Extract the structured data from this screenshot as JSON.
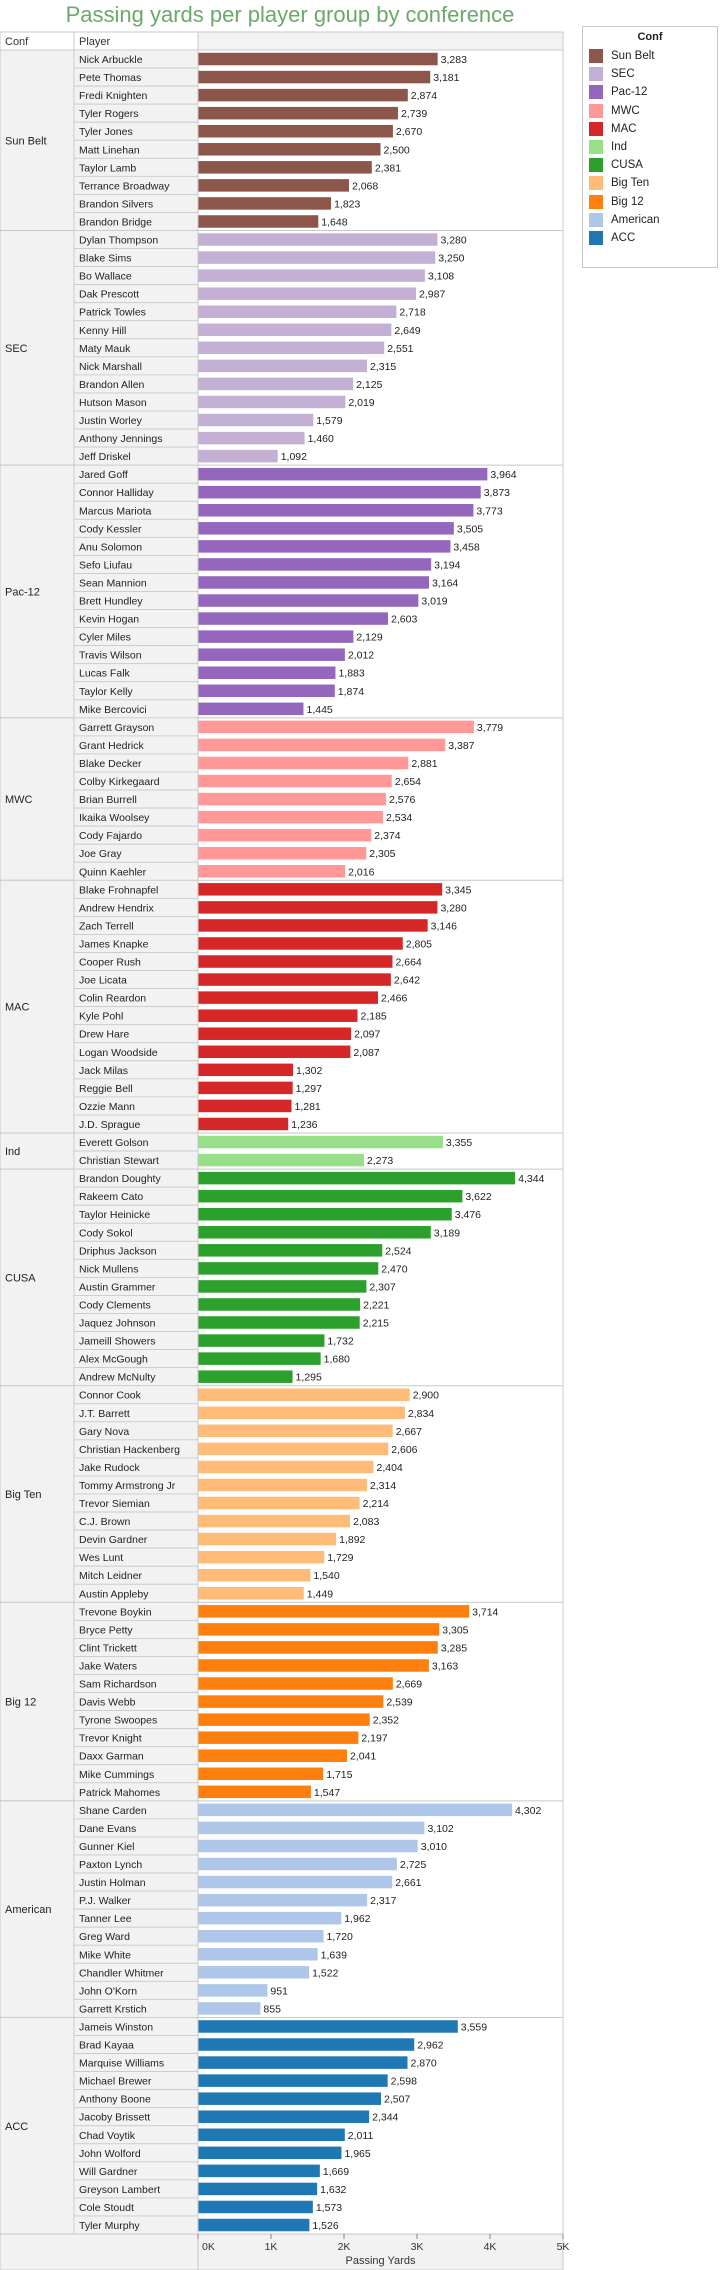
{
  "chart_data": {
    "type": "bar",
    "orientation": "horizontal",
    "title": "Passing yards per player group by conference",
    "xlabel": "Passing Yards",
    "row_headers": [
      "Conf",
      "Player"
    ],
    "xlim": [
      0,
      5000
    ],
    "x_ticks": [
      0,
      1000,
      2000,
      3000,
      4000,
      5000
    ],
    "x_tick_labels": [
      "0K",
      "1K",
      "2K",
      "3K",
      "4K",
      "5K"
    ],
    "grid": false,
    "legend": {
      "title": "Conf",
      "position": "right"
    },
    "groups": [
      {
        "name": "Sun Belt",
        "color": "#8c564b",
        "players": [
          {
            "name": "Nick Arbuckle",
            "value": 3283,
            "label": "3,283"
          },
          {
            "name": "Pete Thomas",
            "value": 3181,
            "label": "3,181"
          },
          {
            "name": "Fredi Knighten",
            "value": 2874,
            "label": "2,874"
          },
          {
            "name": "Tyler Rogers",
            "value": 2739,
            "label": "2,739"
          },
          {
            "name": "Tyler Jones",
            "value": 2670,
            "label": "2,670"
          },
          {
            "name": "Matt Linehan",
            "value": 2500,
            "label": "2,500"
          },
          {
            "name": "Taylor Lamb",
            "value": 2381,
            "label": "2,381"
          },
          {
            "name": "Terrance Broadway",
            "value": 2068,
            "label": "2,068"
          },
          {
            "name": "Brandon Silvers",
            "value": 1823,
            "label": "1,823"
          },
          {
            "name": "Brandon Bridge",
            "value": 1648,
            "label": "1,648"
          }
        ]
      },
      {
        "name": "SEC",
        "color": "#c5b0d5",
        "players": [
          {
            "name": "Dylan Thompson",
            "value": 3280,
            "label": "3,280"
          },
          {
            "name": "Blake Sims",
            "value": 3250,
            "label": "3,250"
          },
          {
            "name": "Bo Wallace",
            "value": 3108,
            "label": "3,108"
          },
          {
            "name": "Dak Prescott",
            "value": 2987,
            "label": "2,987"
          },
          {
            "name": "Patrick Towles",
            "value": 2718,
            "label": "2,718"
          },
          {
            "name": "Kenny Hill",
            "value": 2649,
            "label": "2,649"
          },
          {
            "name": "Maty Mauk",
            "value": 2551,
            "label": "2,551"
          },
          {
            "name": "Nick Marshall",
            "value": 2315,
            "label": "2,315"
          },
          {
            "name": "Brandon Allen",
            "value": 2125,
            "label": "2,125"
          },
          {
            "name": "Hutson Mason",
            "value": 2019,
            "label": "2,019"
          },
          {
            "name": "Justin Worley",
            "value": 1579,
            "label": "1,579"
          },
          {
            "name": "Anthony Jennings",
            "value": 1460,
            "label": "1,460"
          },
          {
            "name": "Jeff Driskel",
            "value": 1092,
            "label": "1,092"
          }
        ]
      },
      {
        "name": "Pac-12",
        "color": "#9467bd",
        "players": [
          {
            "name": "Jared Goff",
            "value": 3964,
            "label": "3,964"
          },
          {
            "name": "Connor Halliday",
            "value": 3873,
            "label": "3,873"
          },
          {
            "name": "Marcus Mariota",
            "value": 3773,
            "label": "3,773"
          },
          {
            "name": "Cody Kessler",
            "value": 3505,
            "label": "3,505"
          },
          {
            "name": "Anu Solomon",
            "value": 3458,
            "label": "3,458"
          },
          {
            "name": "Sefo Liufau",
            "value": 3194,
            "label": "3,194"
          },
          {
            "name": "Sean Mannion",
            "value": 3164,
            "label": "3,164"
          },
          {
            "name": "Brett Hundley",
            "value": 3019,
            "label": "3,019"
          },
          {
            "name": "Kevin Hogan",
            "value": 2603,
            "label": "2,603"
          },
          {
            "name": "Cyler Miles",
            "value": 2129,
            "label": "2,129"
          },
          {
            "name": "Travis Wilson",
            "value": 2012,
            "label": "2,012"
          },
          {
            "name": "Lucas Falk",
            "value": 1883,
            "label": "1,883"
          },
          {
            "name": "Taylor Kelly",
            "value": 1874,
            "label": "1,874"
          },
          {
            "name": "Mike Bercovici",
            "value": 1445,
            "label": "1,445"
          }
        ]
      },
      {
        "name": "MWC",
        "color": "#ff9896",
        "players": [
          {
            "name": "Garrett Grayson",
            "value": 3779,
            "label": "3,779"
          },
          {
            "name": "Grant Hedrick",
            "value": 3387,
            "label": "3,387"
          },
          {
            "name": "Blake Decker",
            "value": 2881,
            "label": "2,881"
          },
          {
            "name": "Colby Kirkegaard",
            "value": 2654,
            "label": "2,654"
          },
          {
            "name": "Brian Burrell",
            "value": 2576,
            "label": "2,576"
          },
          {
            "name": "Ikaika Woolsey",
            "value": 2534,
            "label": "2,534"
          },
          {
            "name": "Cody Fajardo",
            "value": 2374,
            "label": "2,374"
          },
          {
            "name": "Joe Gray",
            "value": 2305,
            "label": "2,305"
          },
          {
            "name": "Quinn Kaehler",
            "value": 2016,
            "label": "2,016"
          }
        ]
      },
      {
        "name": "MAC",
        "color": "#d62728",
        "players": [
          {
            "name": "Blake Frohnapfel",
            "value": 3345,
            "label": "3,345"
          },
          {
            "name": "Andrew Hendrix",
            "value": 3280,
            "label": "3,280"
          },
          {
            "name": "Zach Terrell",
            "value": 3146,
            "label": "3,146"
          },
          {
            "name": "James Knapke",
            "value": 2805,
            "label": "2,805"
          },
          {
            "name": "Cooper Rush",
            "value": 2664,
            "label": "2,664"
          },
          {
            "name": "Joe Licata",
            "value": 2642,
            "label": "2,642"
          },
          {
            "name": "Colin Reardon",
            "value": 2466,
            "label": "2,466"
          },
          {
            "name": "Kyle Pohl",
            "value": 2185,
            "label": "2,185"
          },
          {
            "name": "Drew Hare",
            "value": 2097,
            "label": "2,097"
          },
          {
            "name": "Logan Woodside",
            "value": 2087,
            "label": "2,087"
          },
          {
            "name": "Jack Milas",
            "value": 1302,
            "label": "1,302"
          },
          {
            "name": "Reggie Bell",
            "value": 1297,
            "label": "1,297"
          },
          {
            "name": "Ozzie Mann",
            "value": 1281,
            "label": "1,281"
          },
          {
            "name": "J.D. Sprague",
            "value": 1236,
            "label": "1,236"
          }
        ]
      },
      {
        "name": "Ind",
        "color": "#98df8a",
        "players": [
          {
            "name": "Everett Golson",
            "value": 3355,
            "label": "3,355"
          },
          {
            "name": "Christian Stewart",
            "value": 2273,
            "label": "2,273"
          }
        ]
      },
      {
        "name": "CUSA",
        "color": "#2ca02c",
        "players": [
          {
            "name": "Brandon Doughty",
            "value": 4344,
            "label": "4,344"
          },
          {
            "name": "Rakeem Cato",
            "value": 3622,
            "label": "3,622"
          },
          {
            "name": "Taylor Heinicke",
            "value": 3476,
            "label": "3,476"
          },
          {
            "name": "Cody Sokol",
            "value": 3189,
            "label": "3,189"
          },
          {
            "name": "Driphus Jackson",
            "value": 2524,
            "label": "2,524"
          },
          {
            "name": "Nick Mullens",
            "value": 2470,
            "label": "2,470"
          },
          {
            "name": "Austin Grammer",
            "value": 2307,
            "label": "2,307"
          },
          {
            "name": "Cody Clements",
            "value": 2221,
            "label": "2,221"
          },
          {
            "name": "Jaquez Johnson",
            "value": 2215,
            "label": "2,215"
          },
          {
            "name": "Jameill Showers",
            "value": 1732,
            "label": "1,732"
          },
          {
            "name": "Alex McGough",
            "value": 1680,
            "label": "1,680"
          },
          {
            "name": "Andrew McNulty",
            "value": 1295,
            "label": "1,295"
          }
        ]
      },
      {
        "name": "Big Ten",
        "color": "#ffbb78",
        "players": [
          {
            "name": "Connor Cook",
            "value": 2900,
            "label": "2,900"
          },
          {
            "name": "J.T. Barrett",
            "value": 2834,
            "label": "2,834"
          },
          {
            "name": "Gary Nova",
            "value": 2667,
            "label": "2,667"
          },
          {
            "name": "Christian Hackenberg",
            "value": 2606,
            "label": "2,606"
          },
          {
            "name": "Jake Rudock",
            "value": 2404,
            "label": "2,404"
          },
          {
            "name": "Tommy Armstrong Jr",
            "value": 2314,
            "label": "2,314"
          },
          {
            "name": "Trevor Siemian",
            "value": 2214,
            "label": "2,214"
          },
          {
            "name": "C.J. Brown",
            "value": 2083,
            "label": "2,083"
          },
          {
            "name": "Devin Gardner",
            "value": 1892,
            "label": "1,892"
          },
          {
            "name": "Wes Lunt",
            "value": 1729,
            "label": "1,729"
          },
          {
            "name": "Mitch Leidner",
            "value": 1540,
            "label": "1,540"
          },
          {
            "name": "Austin Appleby",
            "value": 1449,
            "label": "1,449"
          }
        ]
      },
      {
        "name": "Big 12",
        "color": "#ff7f0e",
        "players": [
          {
            "name": "Trevone Boykin",
            "value": 3714,
            "label": "3,714"
          },
          {
            "name": "Bryce Petty",
            "value": 3305,
            "label": "3,305"
          },
          {
            "name": "Clint Trickett",
            "value": 3285,
            "label": "3,285"
          },
          {
            "name": "Jake Waters",
            "value": 3163,
            "label": "3,163"
          },
          {
            "name": "Sam Richardson",
            "value": 2669,
            "label": "2,669"
          },
          {
            "name": "Davis Webb",
            "value": 2539,
            "label": "2,539"
          },
          {
            "name": "Tyrone Swoopes",
            "value": 2352,
            "label": "2,352"
          },
          {
            "name": "Trevor Knight",
            "value": 2197,
            "label": "2,197"
          },
          {
            "name": "Daxx Garman",
            "value": 2041,
            "label": "2,041"
          },
          {
            "name": "Mike Cummings",
            "value": 1715,
            "label": "1,715"
          },
          {
            "name": "Patrick Mahomes",
            "value": 1547,
            "label": "1,547"
          }
        ]
      },
      {
        "name": "American",
        "color": "#aec7e8",
        "players": [
          {
            "name": "Shane Carden",
            "value": 4302,
            "label": "4,302"
          },
          {
            "name": "Dane Evans",
            "value": 3102,
            "label": "3,102"
          },
          {
            "name": "Gunner Kiel",
            "value": 3010,
            "label": "3,010"
          },
          {
            "name": "Paxton Lynch",
            "value": 2725,
            "label": "2,725"
          },
          {
            "name": "Justin Holman",
            "value": 2661,
            "label": "2,661"
          },
          {
            "name": "P.J. Walker",
            "value": 2317,
            "label": "2,317"
          },
          {
            "name": "Tanner Lee",
            "value": 1962,
            "label": "1,962"
          },
          {
            "name": "Greg Ward",
            "value": 1720,
            "label": "1,720"
          },
          {
            "name": "Mike White",
            "value": 1639,
            "label": "1,639"
          },
          {
            "name": "Chandler Whitmer",
            "value": 1522,
            "label": "1,522"
          },
          {
            "name": "John O'Korn",
            "value": 951,
            "label": "951"
          },
          {
            "name": "Garrett Krstich",
            "value": 855,
            "label": "855"
          }
        ]
      },
      {
        "name": "ACC",
        "color": "#1f77b4",
        "players": [
          {
            "name": "Jameis Winston",
            "value": 3559,
            "label": "3,559"
          },
          {
            "name": "Brad Kayaa",
            "value": 2962,
            "label": "2,962"
          },
          {
            "name": "Marquise Williams",
            "value": 2870,
            "label": "2,870"
          },
          {
            "name": "Michael Brewer",
            "value": 2598,
            "label": "2,598"
          },
          {
            "name": "Anthony Boone",
            "value": 2507,
            "label": "2,507"
          },
          {
            "name": "Jacoby Brissett",
            "value": 2344,
            "label": "2,344"
          },
          {
            "name": "Chad Voytik",
            "value": 2011,
            "label": "2,011"
          },
          {
            "name": "John Wolford",
            "value": 1965,
            "label": "1,965"
          },
          {
            "name": "Will Gardner",
            "value": 1669,
            "label": "1,669"
          },
          {
            "name": "Greyson Lambert",
            "value": 1632,
            "label": "1,632"
          },
          {
            "name": "Cole Stoudt",
            "value": 1573,
            "label": "1,573"
          },
          {
            "name": "Tyler Murphy",
            "value": 1526,
            "label": "1,526"
          }
        ]
      }
    ]
  }
}
